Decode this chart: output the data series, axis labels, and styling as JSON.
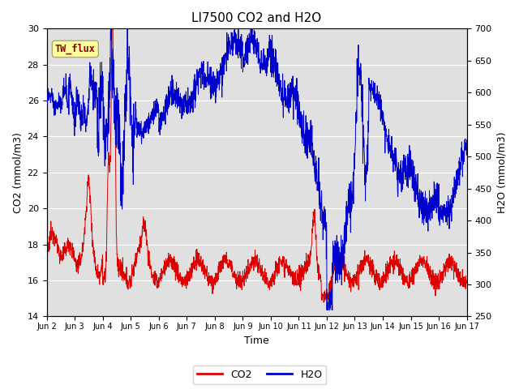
{
  "title": "LI7500 CO2 and H2O",
  "xlabel": "Time",
  "ylabel_left": "CO2 (mmol/m3)",
  "ylabel_right": "H2O (mmol/m3)",
  "xlim": [
    0,
    15
  ],
  "ylim_left": [
    14,
    30
  ],
  "ylim_right": [
    250,
    700
  ],
  "yticks_left": [
    14,
    16,
    18,
    20,
    22,
    24,
    26,
    28,
    30
  ],
  "yticks_right": [
    250,
    300,
    350,
    400,
    450,
    500,
    550,
    600,
    650,
    700
  ],
  "xtick_labels": [
    "Jun 2",
    "Jun 3",
    "Jun 4",
    "Jun 5",
    "Jun 6",
    "Jun 7",
    "Jun 8",
    "Jun 9",
    "Jun 10",
    "Jun 11",
    "Jun 12",
    "Jun 13",
    "Jun 14",
    "Jun 15",
    "Jun 16",
    "Jun 17"
  ],
  "xtick_positions": [
    0,
    1,
    2,
    3,
    4,
    5,
    6,
    7,
    8,
    9,
    10,
    11,
    12,
    13,
    14,
    15
  ],
  "legend_label_co2": "CO2",
  "legend_label_h2o": "H2O",
  "co2_color": "#dd0000",
  "h2o_color": "#0000cc",
  "bg_color": "#e0e0e0",
  "annotation_text": "TW_flux",
  "annotation_color": "#880000",
  "annotation_bg": "#ffff99",
  "title_fontsize": 11,
  "axis_fontsize": 9,
  "tick_fontsize": 8
}
